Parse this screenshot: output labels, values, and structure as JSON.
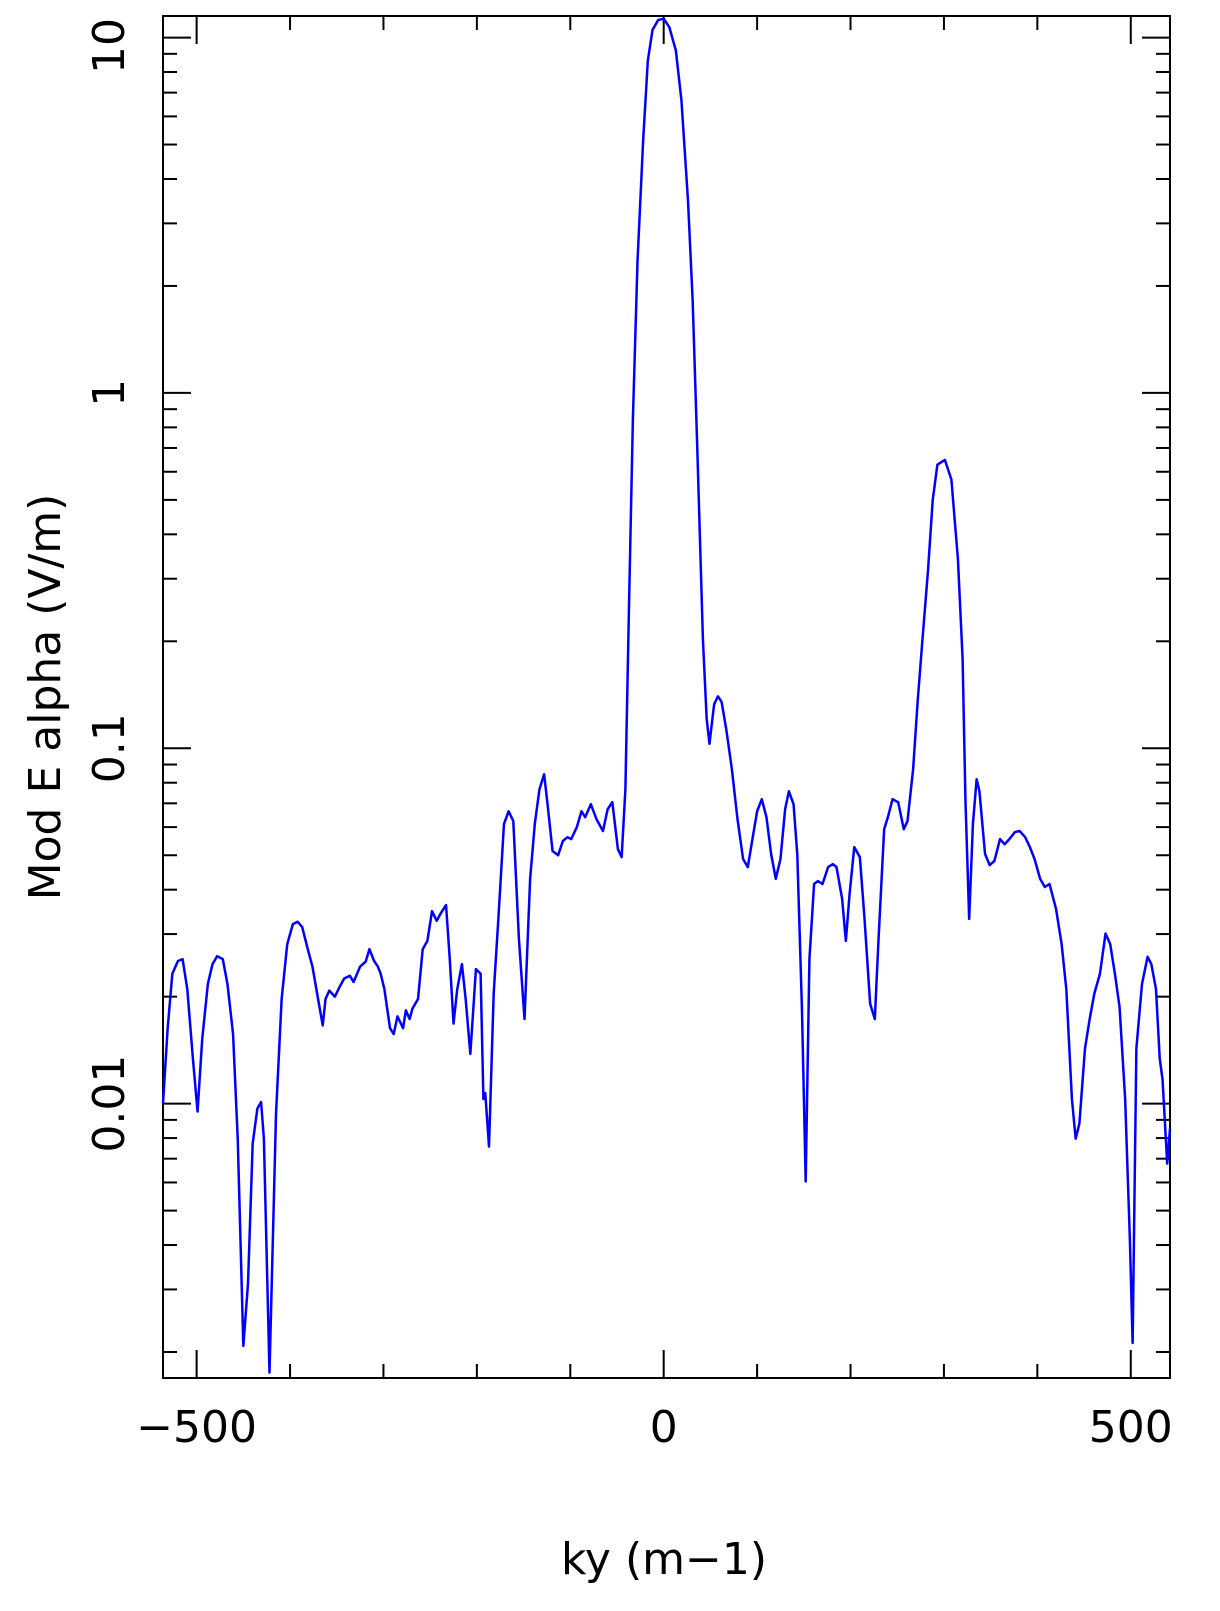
{
  "chart_data": {
    "type": "line",
    "xlabel": "ky (m−1)",
    "ylabel": "Mod E alpha (V/m)",
    "ylog": true,
    "color": "#0000ff",
    "xlim": [
      -536,
      542
    ],
    "ylim": [
      0.00169,
      11.5
    ],
    "xticks": [
      {
        "value": -500,
        "label": "−500"
      },
      0,
      500
    ],
    "xminorticks": [
      -400,
      -300,
      -200,
      -100,
      100,
      200,
      300,
      400
    ],
    "yticks": [
      0.01,
      0.1,
      1,
      10
    ],
    "yminorticks": [
      0.002,
      0.003,
      0.004,
      0.005,
      0.006,
      0.007,
      0.008,
      0.009,
      0.02,
      0.03,
      0.04,
      0.05,
      0.06,
      0.07,
      0.08,
      0.09,
      0.2,
      0.3,
      0.4,
      0.5,
      0.6,
      0.7,
      0.8,
      0.9,
      2,
      3,
      4,
      5,
      6,
      7,
      8,
      9
    ],
    "x": [
      -536,
      -531,
      -526,
      -520,
      -515,
      -510,
      -504,
      -499,
      -494,
      -488,
      -483,
      -478,
      -472,
      -467,
      -461,
      -456,
      -450,
      -445,
      -440,
      -435,
      -431,
      -428,
      -422,
      -415,
      -409,
      -403,
      -397,
      -392,
      -387,
      -381,
      -376,
      -370,
      -365,
      -362,
      -358,
      -352,
      -347,
      -342,
      -336,
      -332,
      -325,
      -319,
      -315,
      -310,
      -306,
      -303,
      -299,
      -293,
      -289,
      -285,
      -279,
      -276,
      -272,
      -269,
      -263,
      -258,
      -253,
      -248,
      -243,
      -239,
      -233,
      -229,
      -225,
      -221,
      -216,
      -212,
      -207,
      -201,
      -196,
      -193,
      -191,
      -187,
      -182,
      -177,
      -171,
      -166,
      -161,
      -155,
      -149,
      -143,
      -138,
      -133,
      -128,
      -124,
      -119,
      -113,
      -108,
      -103,
      -99,
      -93,
      -88,
      -84,
      -78,
      -72,
      -65,
      -60,
      -55,
      -49,
      -45,
      -41,
      -37,
      -33,
      -28,
      -22,
      -17,
      -12,
      -6,
      0,
      6,
      13,
      19,
      26,
      31,
      36,
      42,
      46,
      49,
      54,
      58,
      62,
      67,
      73,
      79,
      85,
      90,
      95,
      100,
      105,
      110,
      115,
      120,
      125,
      130,
      134,
      139,
      143,
      148,
      152,
      156,
      161,
      165,
      170,
      176,
      181,
      185,
      191,
      195,
      199,
      204,
      210,
      215,
      221,
      226,
      230,
      236,
      240,
      245,
      251,
      257,
      261,
      267,
      272,
      277,
      283,
      288,
      293,
      301,
      308,
      315,
      320,
      323,
      327,
      331,
      335,
      338,
      344,
      349,
      354,
      360,
      365,
      370,
      376,
      381,
      387,
      392,
      397,
      403,
      408,
      413,
      420,
      426,
      431,
      437,
      441,
      445,
      451,
      456,
      461,
      467,
      473,
      478,
      483,
      488,
      494,
      499,
      502,
      506,
      512,
      518,
      522,
      527,
      531,
      534,
      539,
      542
    ],
    "values": [
      0.01,
      0.0163,
      0.0232,
      0.0252,
      0.0255,
      0.021,
      0.0134,
      0.0095,
      0.0152,
      0.0217,
      0.0247,
      0.026,
      0.0255,
      0.0217,
      0.0157,
      0.00797,
      0.00208,
      0.00312,
      0.00772,
      0.00968,
      0.0101,
      0.00797,
      0.00175,
      0.00937,
      0.0197,
      0.0281,
      0.032,
      0.0325,
      0.0314,
      0.0272,
      0.0243,
      0.0197,
      0.0166,
      0.0197,
      0.0208,
      0.02,
      0.0213,
      0.0225,
      0.0229,
      0.022,
      0.0243,
      0.0251,
      0.0272,
      0.0252,
      0.0243,
      0.0232,
      0.021,
      0.0163,
      0.0157,
      0.0176,
      0.0163,
      0.0183,
      0.0173,
      0.0185,
      0.0197,
      0.0272,
      0.0287,
      0.0348,
      0.0327,
      0.0342,
      0.0362,
      0.0255,
      0.0168,
      0.021,
      0.0247,
      0.0197,
      0.0138,
      0.0239,
      0.0232,
      0.0103,
      0.0107,
      0.00757,
      0.0204,
      0.0331,
      0.0612,
      0.0665,
      0.0624,
      0.0291,
      0.0173,
      0.0429,
      0.0612,
      0.0767,
      0.0845,
      0.0683,
      0.0514,
      0.05,
      0.0548,
      0.0562,
      0.0555,
      0.06,
      0.0665,
      0.064,
      0.0696,
      0.0632,
      0.0585,
      0.0674,
      0.0705,
      0.052,
      0.0494,
      0.0767,
      0.262,
      0.84,
      2.36,
      5.14,
      8.61,
      10.5,
      11.2,
      11.3,
      10.7,
      9.2,
      6.65,
      3.48,
      1.82,
      0.692,
      0.202,
      0.121,
      0.103,
      0.133,
      0.14,
      0.135,
      0.113,
      0.0873,
      0.0632,
      0.0488,
      0.0463,
      0.0555,
      0.0665,
      0.0719,
      0.064,
      0.0504,
      0.0429,
      0.0488,
      0.0674,
      0.0757,
      0.0696,
      0.0504,
      0.0185,
      0.00604,
      0.0255,
      0.0415,
      0.0423,
      0.0415,
      0.0463,
      0.0472,
      0.0463,
      0.0377,
      0.0287,
      0.0389,
      0.0527,
      0.0494,
      0.0331,
      0.0191,
      0.0173,
      0.0291,
      0.0592,
      0.064,
      0.0719,
      0.0705,
      0.0592,
      0.0624,
      0.0873,
      0.137,
      0.202,
      0.318,
      0.5,
      0.628,
      0.648,
      0.57,
      0.34,
      0.178,
      0.0719,
      0.0331,
      0.0612,
      0.0818,
      0.0757,
      0.0504,
      0.0469,
      0.0482,
      0.0555,
      0.0537,
      0.0555,
      0.0581,
      0.0585,
      0.0562,
      0.0527,
      0.0488,
      0.0429,
      0.0407,
      0.0415,
      0.0353,
      0.0281,
      0.021,
      0.0103,
      0.00797,
      0.00879,
      0.0143,
      0.0173,
      0.0204,
      0.0232,
      0.0301,
      0.0281,
      0.0232,
      0.0187,
      0.0103,
      0.00418,
      0.00212,
      0.0143,
      0.0217,
      0.0259,
      0.0247,
      0.021,
      0.0134,
      0.0117,
      0.00678,
      0.00851
    ]
  }
}
